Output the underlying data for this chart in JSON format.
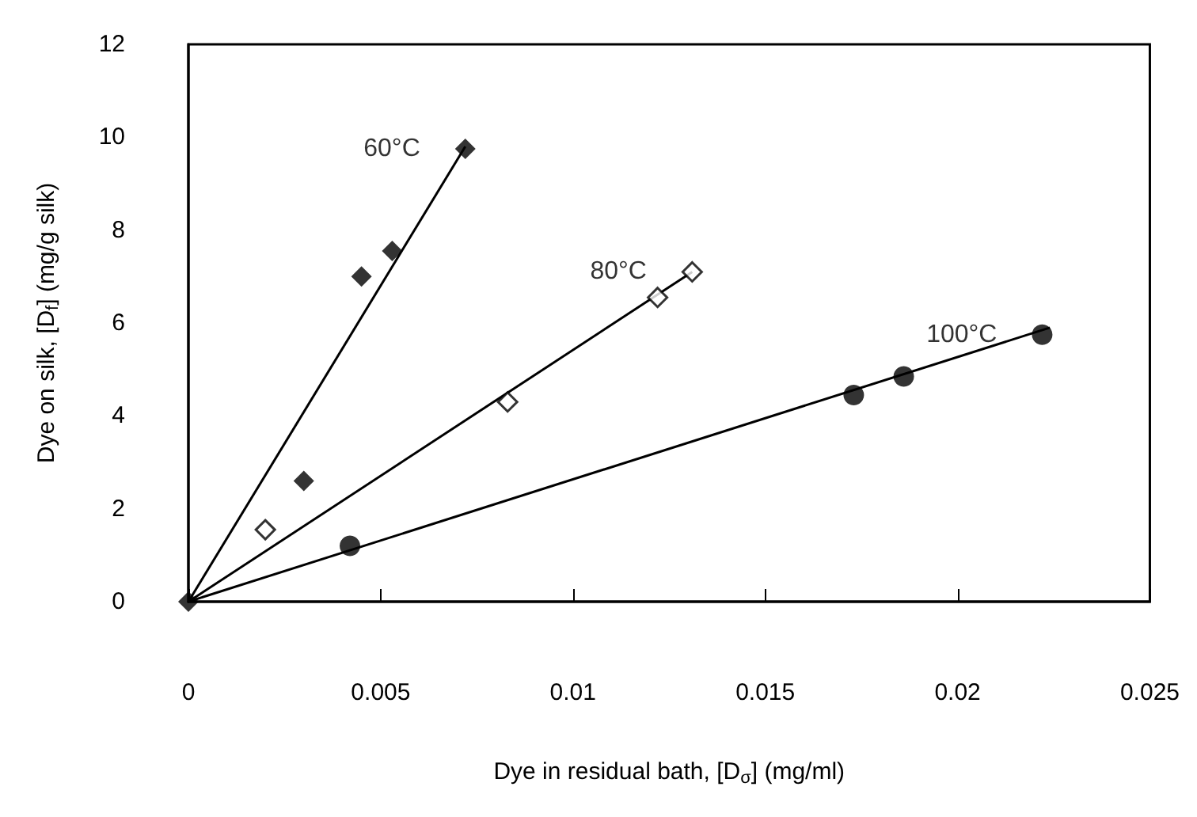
{
  "chart_data": {
    "type": "scatter",
    "xlabel": "Dye in residual bath, [D$_{σ}$] (mg/ml)",
    "ylabel": "Dye on silk, [D$_{f}$] (mg/g silk)",
    "xlim": [
      0,
      0.025
    ],
    "xticks": [
      0,
      0.005,
      0.01,
      0.015,
      0.02,
      0.025
    ],
    "ylim": [
      0,
      12
    ],
    "yticks": [
      0,
      2,
      4,
      6,
      8,
      10,
      12
    ],
    "grid": false,
    "series": [
      {
        "name": "60°C",
        "marker": "diamond",
        "color": "#000000",
        "x": [
          0,
          0.003,
          0.0045,
          0.0053,
          0.0072
        ],
        "values": [
          0,
          2.6,
          7.0,
          7.55,
          9.75
        ]
      },
      {
        "name": "80°C",
        "marker": "diamond_open",
        "color": "#000000",
        "x": [
          0.002,
          0.0083,
          0.0122,
          0.0131
        ],
        "values": [
          1.55,
          4.3,
          6.55,
          7.1
        ]
      },
      {
        "name": "100°C",
        "marker": "circle",
        "color": "#000000",
        "x": [
          0.0042,
          0.0173,
          0.0186,
          0.0222
        ],
        "values": [
          1.2,
          4.45,
          4.85,
          5.75
        ]
      },
      {
        "type": "line",
        "marker": "none",
        "color": "#000000",
        "x": [
          0,
          0.0072
        ],
        "values": [
          0,
          9.8
        ]
      },
      {
        "type": "line",
        "marker": "none",
        "color": "#000000",
        "x": [
          0,
          0.0131
        ],
        "values": [
          0,
          7.1
        ]
      },
      {
        "type": "line",
        "marker": "none",
        "color": "#000000",
        "x": [
          0,
          0.0224
        ],
        "values": [
          0,
          5.9
        ]
      }
    ]
  }
}
